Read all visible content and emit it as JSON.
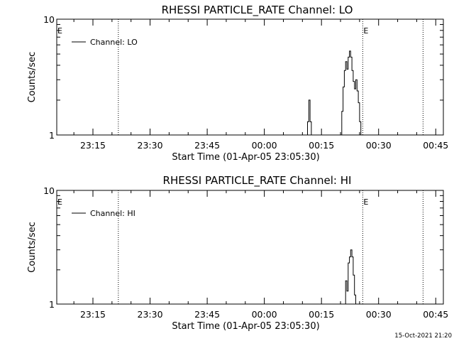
{
  "chart_data": [
    {
      "type": "line",
      "title": "RHESSI PARTICLE_RATE Channel: LO",
      "xlabel": "Start Time (01-Apr-05 23:05:30)",
      "ylabel": "Counts/sec",
      "y_scale": "log",
      "xlim": [
        "23:05:30",
        "00:47:00"
      ],
      "ylim": [
        1,
        10
      ],
      "x_ticks": [
        "23:15",
        "23:30",
        "23:45",
        "00:00",
        "00:15",
        "00:30",
        "00:45"
      ],
      "y_ticks": [
        "1",
        "10"
      ],
      "legend": {
        "label": "Channel: LO",
        "position": "top-left"
      },
      "event_markers": [
        {
          "time": "23:05:30",
          "label": "E"
        },
        {
          "time": "23:21:40",
          "label": ""
        },
        {
          "time": "00:25:50",
          "label": "E"
        },
        {
          "time": "00:41:40",
          "label": ""
        }
      ],
      "series": [
        {
          "name": "Channel: LO",
          "x": [
            "00:11:00",
            "00:11:20",
            "00:11:40",
            "00:12:00",
            "00:12:20",
            "00:12:40",
            "00:13:00",
            "00:20:00",
            "00:20:20",
            "00:20:40",
            "00:21:00",
            "00:21:20",
            "00:21:40",
            "00:22:00",
            "00:22:20",
            "00:22:40",
            "00:23:00",
            "00:23:20",
            "00:23:40",
            "00:24:00",
            "00:24:20",
            "00:24:40",
            "00:25:00",
            "00:25:20"
          ],
          "y": [
            1.0,
            1.3,
            2.0,
            1.3,
            1.0,
            1.0,
            1.0,
            1.0,
            1.6,
            2.6,
            3.6,
            4.3,
            3.7,
            4.7,
            5.3,
            4.7,
            3.6,
            2.9,
            2.5,
            3.0,
            2.4,
            1.9,
            1.3,
            1.0
          ]
        }
      ]
    },
    {
      "type": "line",
      "title": "RHESSI PARTICLE_RATE Channel: HI",
      "xlabel": "Start Time (01-Apr-05 23:05:30)",
      "ylabel": "Counts/sec",
      "y_scale": "log",
      "xlim": [
        "23:05:30",
        "00:47:00"
      ],
      "ylim": [
        1,
        10
      ],
      "x_ticks": [
        "23:15",
        "23:30",
        "23:45",
        "00:00",
        "00:15",
        "00:30",
        "00:45"
      ],
      "y_ticks": [
        "1",
        "10"
      ],
      "legend": {
        "label": "Channel: HI",
        "position": "top-left"
      },
      "event_markers": [
        {
          "time": "23:05:30",
          "label": "E"
        },
        {
          "time": "23:21:40",
          "label": ""
        },
        {
          "time": "00:25:50",
          "label": "E"
        },
        {
          "time": "00:41:40",
          "label": ""
        }
      ],
      "series": [
        {
          "name": "Channel: HI",
          "x": [
            "00:21:00",
            "00:21:20",
            "00:21:40",
            "00:22:00",
            "00:22:20",
            "00:22:40",
            "00:23:00",
            "00:23:20",
            "00:23:40",
            "00:24:00"
          ],
          "y": [
            1.0,
            1.6,
            1.3,
            2.3,
            2.6,
            3.0,
            2.6,
            1.8,
            1.2,
            1.0
          ]
        }
      ]
    }
  ],
  "footer": {
    "timestamp": "15-Oct-2021 21:20"
  }
}
